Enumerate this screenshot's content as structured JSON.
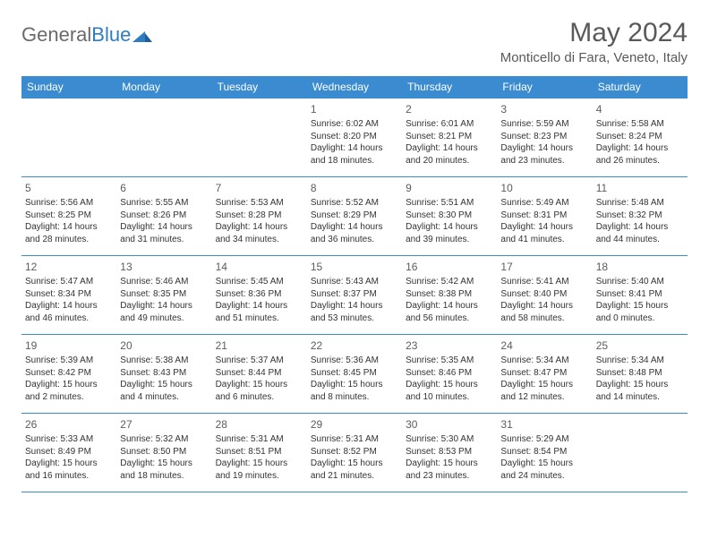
{
  "brand": {
    "part1": "General",
    "part2": "Blue"
  },
  "title": "May 2024",
  "location": "Monticello di Fara, Veneto, Italy",
  "colors": {
    "header_bg": "#3b8bd0",
    "header_text": "#ffffff",
    "border": "#3b8bd0",
    "title_color": "#595959",
    "text_color": "#333333"
  },
  "day_headers": [
    "Sunday",
    "Monday",
    "Tuesday",
    "Wednesday",
    "Thursday",
    "Friday",
    "Saturday"
  ],
  "weeks": [
    [
      {
        "n": "",
        "sr": "",
        "ss": "",
        "dl": ""
      },
      {
        "n": "",
        "sr": "",
        "ss": "",
        "dl": ""
      },
      {
        "n": "",
        "sr": "",
        "ss": "",
        "dl": ""
      },
      {
        "n": "1",
        "sr": "Sunrise: 6:02 AM",
        "ss": "Sunset: 8:20 PM",
        "dl": "Daylight: 14 hours and 18 minutes."
      },
      {
        "n": "2",
        "sr": "Sunrise: 6:01 AM",
        "ss": "Sunset: 8:21 PM",
        "dl": "Daylight: 14 hours and 20 minutes."
      },
      {
        "n": "3",
        "sr": "Sunrise: 5:59 AM",
        "ss": "Sunset: 8:23 PM",
        "dl": "Daylight: 14 hours and 23 minutes."
      },
      {
        "n": "4",
        "sr": "Sunrise: 5:58 AM",
        "ss": "Sunset: 8:24 PM",
        "dl": "Daylight: 14 hours and 26 minutes."
      }
    ],
    [
      {
        "n": "5",
        "sr": "Sunrise: 5:56 AM",
        "ss": "Sunset: 8:25 PM",
        "dl": "Daylight: 14 hours and 28 minutes."
      },
      {
        "n": "6",
        "sr": "Sunrise: 5:55 AM",
        "ss": "Sunset: 8:26 PM",
        "dl": "Daylight: 14 hours and 31 minutes."
      },
      {
        "n": "7",
        "sr": "Sunrise: 5:53 AM",
        "ss": "Sunset: 8:28 PM",
        "dl": "Daylight: 14 hours and 34 minutes."
      },
      {
        "n": "8",
        "sr": "Sunrise: 5:52 AM",
        "ss": "Sunset: 8:29 PM",
        "dl": "Daylight: 14 hours and 36 minutes."
      },
      {
        "n": "9",
        "sr": "Sunrise: 5:51 AM",
        "ss": "Sunset: 8:30 PM",
        "dl": "Daylight: 14 hours and 39 minutes."
      },
      {
        "n": "10",
        "sr": "Sunrise: 5:49 AM",
        "ss": "Sunset: 8:31 PM",
        "dl": "Daylight: 14 hours and 41 minutes."
      },
      {
        "n": "11",
        "sr": "Sunrise: 5:48 AM",
        "ss": "Sunset: 8:32 PM",
        "dl": "Daylight: 14 hours and 44 minutes."
      }
    ],
    [
      {
        "n": "12",
        "sr": "Sunrise: 5:47 AM",
        "ss": "Sunset: 8:34 PM",
        "dl": "Daylight: 14 hours and 46 minutes."
      },
      {
        "n": "13",
        "sr": "Sunrise: 5:46 AM",
        "ss": "Sunset: 8:35 PM",
        "dl": "Daylight: 14 hours and 49 minutes."
      },
      {
        "n": "14",
        "sr": "Sunrise: 5:45 AM",
        "ss": "Sunset: 8:36 PM",
        "dl": "Daylight: 14 hours and 51 minutes."
      },
      {
        "n": "15",
        "sr": "Sunrise: 5:43 AM",
        "ss": "Sunset: 8:37 PM",
        "dl": "Daylight: 14 hours and 53 minutes."
      },
      {
        "n": "16",
        "sr": "Sunrise: 5:42 AM",
        "ss": "Sunset: 8:38 PM",
        "dl": "Daylight: 14 hours and 56 minutes."
      },
      {
        "n": "17",
        "sr": "Sunrise: 5:41 AM",
        "ss": "Sunset: 8:40 PM",
        "dl": "Daylight: 14 hours and 58 minutes."
      },
      {
        "n": "18",
        "sr": "Sunrise: 5:40 AM",
        "ss": "Sunset: 8:41 PM",
        "dl": "Daylight: 15 hours and 0 minutes."
      }
    ],
    [
      {
        "n": "19",
        "sr": "Sunrise: 5:39 AM",
        "ss": "Sunset: 8:42 PM",
        "dl": "Daylight: 15 hours and 2 minutes."
      },
      {
        "n": "20",
        "sr": "Sunrise: 5:38 AM",
        "ss": "Sunset: 8:43 PM",
        "dl": "Daylight: 15 hours and 4 minutes."
      },
      {
        "n": "21",
        "sr": "Sunrise: 5:37 AM",
        "ss": "Sunset: 8:44 PM",
        "dl": "Daylight: 15 hours and 6 minutes."
      },
      {
        "n": "22",
        "sr": "Sunrise: 5:36 AM",
        "ss": "Sunset: 8:45 PM",
        "dl": "Daylight: 15 hours and 8 minutes."
      },
      {
        "n": "23",
        "sr": "Sunrise: 5:35 AM",
        "ss": "Sunset: 8:46 PM",
        "dl": "Daylight: 15 hours and 10 minutes."
      },
      {
        "n": "24",
        "sr": "Sunrise: 5:34 AM",
        "ss": "Sunset: 8:47 PM",
        "dl": "Daylight: 15 hours and 12 minutes."
      },
      {
        "n": "25",
        "sr": "Sunrise: 5:34 AM",
        "ss": "Sunset: 8:48 PM",
        "dl": "Daylight: 15 hours and 14 minutes."
      }
    ],
    [
      {
        "n": "26",
        "sr": "Sunrise: 5:33 AM",
        "ss": "Sunset: 8:49 PM",
        "dl": "Daylight: 15 hours and 16 minutes."
      },
      {
        "n": "27",
        "sr": "Sunrise: 5:32 AM",
        "ss": "Sunset: 8:50 PM",
        "dl": "Daylight: 15 hours and 18 minutes."
      },
      {
        "n": "28",
        "sr": "Sunrise: 5:31 AM",
        "ss": "Sunset: 8:51 PM",
        "dl": "Daylight: 15 hours and 19 minutes."
      },
      {
        "n": "29",
        "sr": "Sunrise: 5:31 AM",
        "ss": "Sunset: 8:52 PM",
        "dl": "Daylight: 15 hours and 21 minutes."
      },
      {
        "n": "30",
        "sr": "Sunrise: 5:30 AM",
        "ss": "Sunset: 8:53 PM",
        "dl": "Daylight: 15 hours and 23 minutes."
      },
      {
        "n": "31",
        "sr": "Sunrise: 5:29 AM",
        "ss": "Sunset: 8:54 PM",
        "dl": "Daylight: 15 hours and 24 minutes."
      },
      {
        "n": "",
        "sr": "",
        "ss": "",
        "dl": ""
      }
    ]
  ]
}
